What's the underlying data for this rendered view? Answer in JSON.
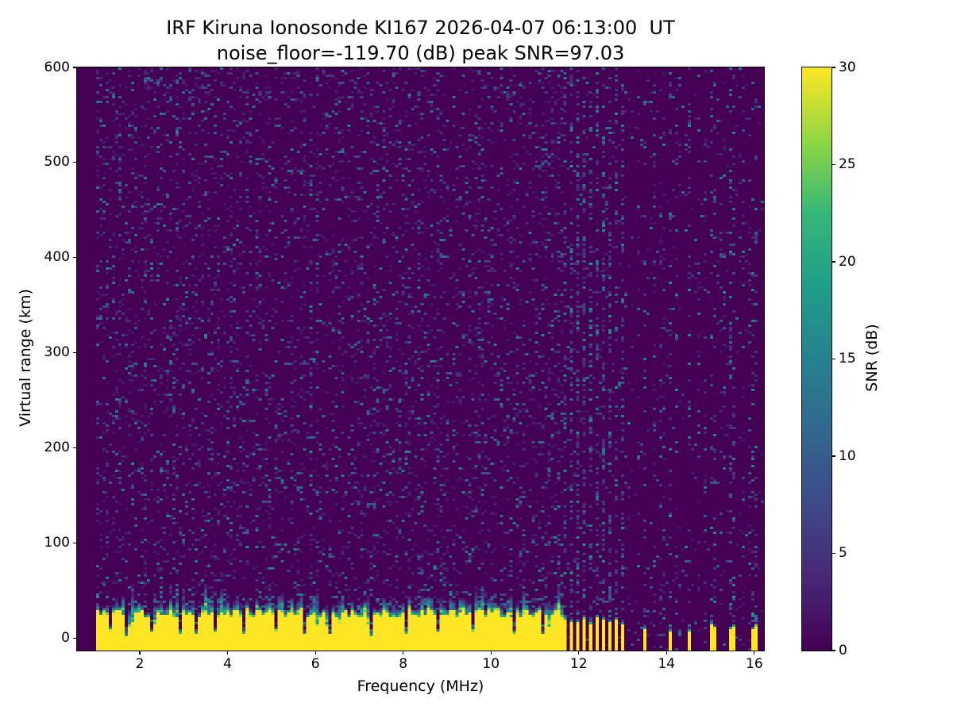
{
  "chart_data": {
    "type": "heatmap",
    "title": "IRF Kiruna Ionosonde KI167 2026-04-07 06:13:00  UT",
    "subtitle": "noise_floor=-119.70 (dB) peak SNR=97.03",
    "station": "IRF Kiruna Ionosonde KI167",
    "timestamp_ut": "2026-04-07 06:13:00",
    "noise_floor_db": -119.7,
    "peak_snr_db": 97.03,
    "xlabel": "Frequency (MHz)",
    "ylabel": "Virtual range (km)",
    "xlim": [
      0.57,
      16.22
    ],
    "ylim": [
      -13,
      600
    ],
    "xticks": [
      2,
      4,
      6,
      8,
      10,
      12,
      14,
      16
    ],
    "yticks": [
      0,
      100,
      200,
      300,
      400,
      500,
      600
    ],
    "grid": false,
    "colormap": "viridis",
    "colors": {
      "background_low": "#440154",
      "peak_high": "#fde725",
      "frame": "#000000"
    },
    "colorbar": {
      "label": "SNR (dB)",
      "ticks": [
        0,
        5,
        10,
        15,
        20,
        25,
        30
      ],
      "min": 0,
      "max": 30,
      "position": "right"
    },
    "content": {
      "seed": 167,
      "sweep": {
        "f_start": 1.0,
        "f_end": 16.2
      },
      "speckle": {
        "density": 0.13,
        "min_db": 2,
        "max_db": 14
      },
      "ground_echo": {
        "f_start": 1.0,
        "f_end": 11.62,
        "solid_top_min_km": 21,
        "solid_top_max_km": 30,
        "fringe_min_km": 4,
        "fringe_max_km": 16,
        "peak_db": 30,
        "notches": [
          1.35,
          1.7,
          2.3,
          2.95,
          3.3,
          3.7,
          4.35,
          5.1,
          5.75,
          6.3,
          7.3,
          8.05,
          8.8,
          9.6,
          10.5,
          11.2
        ]
      },
      "intermittent_echo": {
        "f_start": 11.62,
        "f_end": 13.1,
        "period_mhz": 0.145,
        "duty": 0.55,
        "top_min_km": 14,
        "top_max_km": 24,
        "rfi_noise_density": 0.3
      },
      "sparse_echo_stripes": [
        13.5,
        14.07,
        14.5,
        15.07,
        15.5,
        16.0
      ],
      "sparse_stripe_top_min_km": 6,
      "sparse_stripe_top_max_km": 14,
      "faint_columns": [
        13.35,
        13.72,
        13.9,
        14.25,
        14.72,
        14.9,
        15.28,
        15.72,
        15.9
      ],
      "quiet_noise_density": 0.035
    }
  }
}
